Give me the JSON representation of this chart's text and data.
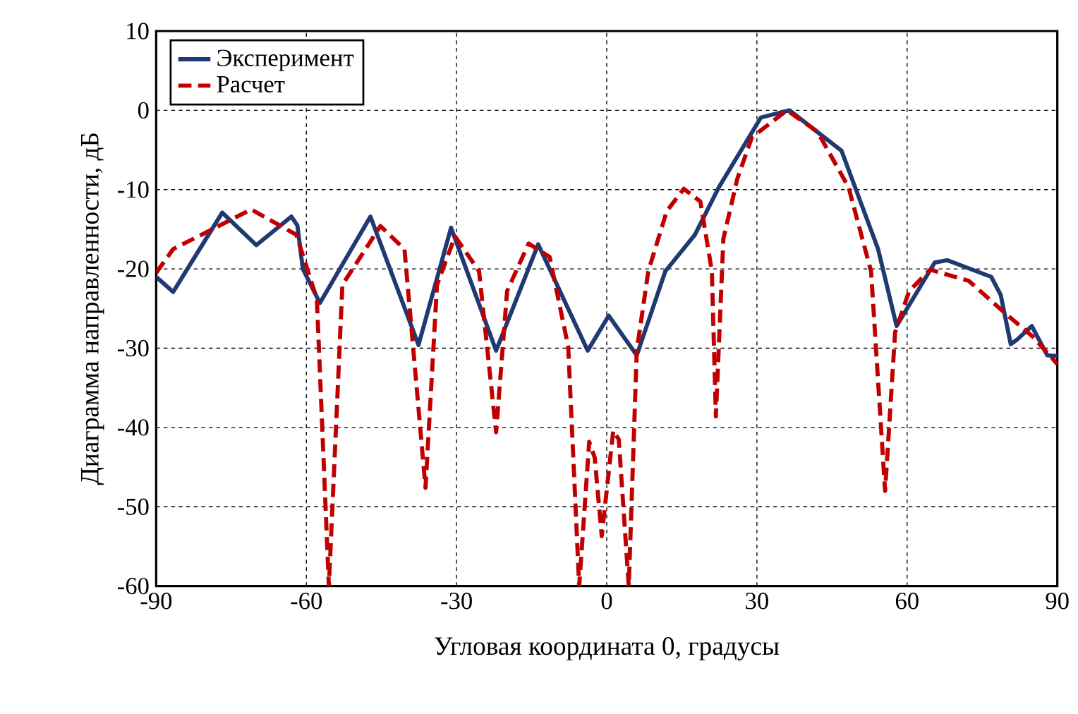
{
  "chart_data": {
    "type": "line",
    "xlabel": "Угловая координата 0, градусы",
    "ylabel": "Диаграмма направленности, дБ",
    "xlim": [
      -90,
      90
    ],
    "ylim": [
      -60,
      10
    ],
    "xticks": [
      -90,
      -60,
      -30,
      0,
      30,
      60,
      90
    ],
    "yticks": [
      -60,
      -50,
      -40,
      -30,
      -20,
      -10,
      0,
      10
    ],
    "grid": true,
    "legend": "top left",
    "marker": "none",
    "series": [
      {
        "name": "Эксперимент",
        "color": "#1f3a73",
        "line_style": "solid",
        "x": [
          -90,
          -86.6,
          -76.8,
          -70,
          -63,
          -61.8,
          -60.7,
          -57.3,
          -47.2,
          -37.6,
          -31.1,
          -22.1,
          -13.7,
          -3.8,
          0.4,
          6,
          11.7,
          17.6,
          22.4,
          30.8,
          36.5,
          46.9,
          54.2,
          57.9,
          65.5,
          68,
          76.8,
          78.7,
          80.7,
          82,
          84.9,
          88,
          90
        ],
        "values": [
          -21,
          -22.9,
          -12.9,
          -17,
          -13.4,
          -14.5,
          -20,
          -24.3,
          -13.4,
          -29.6,
          -14.8,
          -30.3,
          -16.9,
          -30.3,
          -25.9,
          -30.9,
          -20.3,
          -15.7,
          -9.7,
          -0.9,
          0,
          -5.1,
          -17.5,
          -27.2,
          -19.2,
          -18.9,
          -21,
          -23.3,
          -29.5,
          -28.9,
          -27.2,
          -30.9,
          -31
        ]
      },
      {
        "name": "Расчет",
        "color": "#c00000",
        "line_style": "dashed",
        "x": [
          -90,
          -86.6,
          -71,
          -62,
          -57.9,
          -55.5,
          -52.8,
          -45.2,
          -40.4,
          -36.2,
          -33.9,
          -30.3,
          -25.5,
          -22.1,
          -19.9,
          -15.6,
          -11.4,
          -7.7,
          -5.5,
          -3.5,
          -2.4,
          -1,
          1.3,
          2.4,
          4.4,
          6,
          8.3,
          12,
          15.4,
          18.7,
          21,
          21.8,
          23.3,
          26.1,
          29,
          36,
          42.1,
          48.3,
          52.8,
          55.6,
          57.6,
          60.4,
          64.6,
          72.3,
          79.6,
          85.2,
          90
        ],
        "values": [
          -20.5,
          -17.5,
          -12.5,
          -15.7,
          -23.8,
          -60,
          -22,
          -14.6,
          -17.5,
          -47.6,
          -22,
          -15.9,
          -20.3,
          -40.6,
          -22.8,
          -16.8,
          -18.5,
          -29.8,
          -60,
          -41.8,
          -43.8,
          -53.7,
          -40.4,
          -41.5,
          -60,
          -30.3,
          -20.3,
          -12.7,
          -9.9,
          -11.5,
          -20.3,
          -38.6,
          -16.2,
          -8.6,
          -3.4,
          0,
          -2.7,
          -9.7,
          -20.3,
          -48,
          -28,
          -22.8,
          -20.1,
          -21.5,
          -25.6,
          -28.6,
          -32
        ]
      }
    ]
  }
}
